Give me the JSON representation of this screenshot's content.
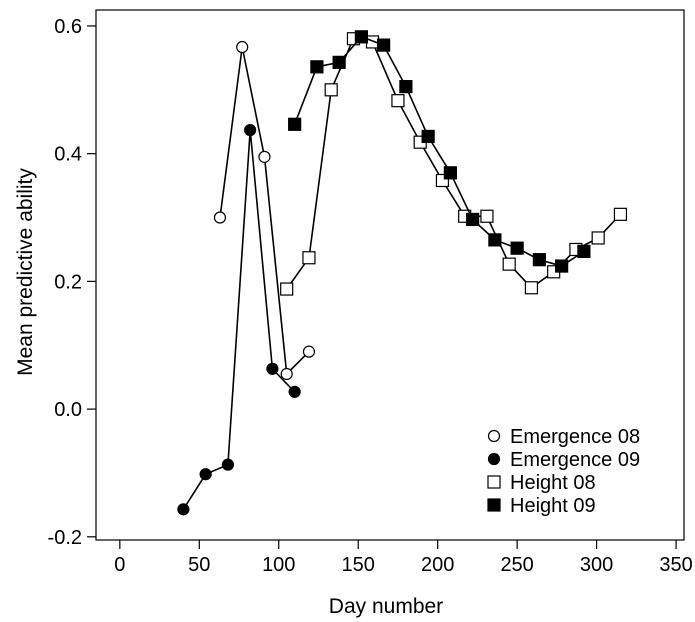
{
  "chart_data": {
    "type": "scatter",
    "title": "",
    "xlabel": "Day number",
    "ylabel": "Mean predictive ability",
    "xlim": [
      -15,
      355
    ],
    "ylim": [
      -0.205,
      0.625
    ],
    "x_ticks": [
      0,
      50,
      100,
      150,
      200,
      250,
      300,
      350
    ],
    "x_tick_labels": [
      "0",
      "50",
      "100",
      "150",
      "200",
      "250",
      "300",
      "350"
    ],
    "y_ticks": [
      -0.2,
      0.0,
      0.2,
      0.4,
      0.6
    ],
    "y_tick_labels": [
      "-0.2",
      "0.0",
      "0.2",
      "0.4",
      "0.6"
    ],
    "grid": false,
    "legend_position": "bottom-right",
    "series": [
      {
        "name": "Emergence 08",
        "marker": "circle",
        "filled": false,
        "color": "#000000",
        "points": [
          [
            63,
            0.3
          ],
          [
            77,
            0.567
          ],
          [
            91,
            0.395
          ],
          [
            105,
            0.055
          ],
          [
            119,
            0.09
          ]
        ]
      },
      {
        "name": "Emergence 09",
        "marker": "circle",
        "filled": true,
        "color": "#000000",
        "points": [
          [
            40,
            -0.157
          ],
          [
            54,
            -0.102
          ],
          [
            68,
            -0.087
          ],
          [
            82,
            0.437
          ],
          [
            96,
            0.063
          ],
          [
            110,
            0.027
          ]
        ]
      },
      {
        "name": "Height 08",
        "marker": "square",
        "filled": false,
        "color": "#000000",
        "points": [
          [
            105,
            0.188
          ],
          [
            119,
            0.237
          ],
          [
            133,
            0.5
          ],
          [
            147,
            0.58
          ],
          [
            159,
            0.575
          ],
          [
            175,
            0.483
          ],
          [
            189,
            0.418
          ],
          [
            203,
            0.358
          ],
          [
            217,
            0.302
          ],
          [
            231,
            0.302
          ],
          [
            245,
            0.227
          ],
          [
            259,
            0.19
          ],
          [
            273,
            0.215
          ],
          [
            287,
            0.25
          ],
          [
            301,
            0.268
          ],
          [
            315,
            0.305
          ]
        ]
      },
      {
        "name": "Height 09",
        "marker": "square",
        "filled": true,
        "color": "#000000",
        "points": [
          [
            110,
            0.446
          ],
          [
            124,
            0.536
          ],
          [
            138,
            0.543
          ],
          [
            152,
            0.583
          ],
          [
            166,
            0.57
          ],
          [
            180,
            0.505
          ],
          [
            194,
            0.427
          ],
          [
            208,
            0.37
          ],
          [
            222,
            0.297
          ],
          [
            236,
            0.265
          ],
          [
            250,
            0.252
          ],
          [
            264,
            0.234
          ],
          [
            278,
            0.224
          ],
          [
            292,
            0.247
          ]
        ]
      }
    ]
  }
}
